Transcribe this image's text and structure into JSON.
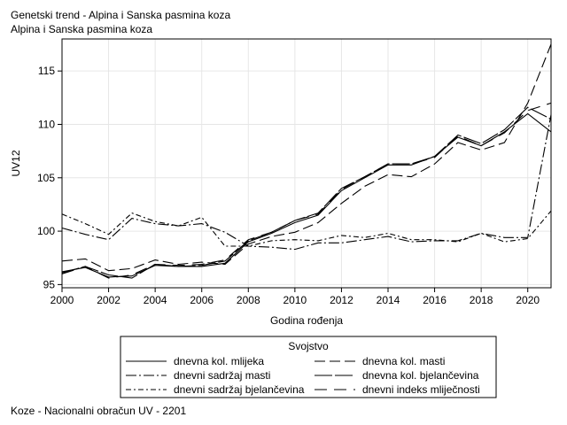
{
  "titles": {
    "line1": "Genetski trend - Alpina i Sanska pasmina koza",
    "line2": "Alpina i Sanska pasmina koza"
  },
  "footnote": "Koze - Nacionalni obračun UV - 2201",
  "chart_data": {
    "type": "line",
    "xlabel": "Godina rođenja",
    "ylabel": "UV12",
    "xlim": [
      2000,
      2021
    ],
    "ylim": [
      94.7,
      118
    ],
    "x_ticks": [
      "2000",
      "2002",
      "2004",
      "2006",
      "2008",
      "2010",
      "2012",
      "2014",
      "2016",
      "2018",
      "2020"
    ],
    "y_ticks": [
      "95",
      "100",
      "105",
      "110",
      "115"
    ],
    "grid": true,
    "legend": {
      "title": "Svojstvo",
      "placement": "bottom"
    },
    "x": [
      2000,
      2001,
      2002,
      2003,
      2004,
      2005,
      2006,
      2007,
      2008,
      2009,
      2010,
      2011,
      2012,
      2013,
      2014,
      2015,
      2016,
      2017,
      2018,
      2019,
      2020,
      2021
    ],
    "series": [
      {
        "name": "dnevna kol. mlijeka",
        "dash": "",
        "values": [
          96.2,
          96.6,
          95.7,
          95.8,
          96.8,
          96.7,
          96.7,
          97.0,
          99.0,
          99.8,
          100.8,
          101.5,
          103.8,
          105.0,
          106.2,
          106.2,
          107.0,
          108.8,
          108.0,
          109.3,
          111.0,
          109.3
        ]
      },
      {
        "name": "dnevna kol. masti",
        "dash": "12,5",
        "values": [
          97.2,
          97.4,
          96.3,
          96.5,
          97.3,
          96.9,
          97.1,
          96.9,
          98.8,
          99.5,
          99.9,
          100.8,
          102.6,
          104.2,
          105.3,
          105.1,
          106.3,
          108.3,
          107.6,
          108.3,
          112.0,
          117.5
        ]
      },
      {
        "name": "dnevni sadržaj masti",
        "dash": "12,3,2,3",
        "values": [
          100.3,
          99.7,
          99.2,
          101.2,
          100.7,
          100.5,
          100.7,
          99.9,
          98.6,
          98.5,
          98.3,
          98.9,
          98.9,
          99.2,
          99.5,
          99.0,
          99.1,
          99.1,
          99.8,
          99.4,
          99.4,
          110.9
        ]
      },
      {
        "name": "dnevna kol. bjelančevina",
        "dash": "20,3",
        "values": [
          96.1,
          96.7,
          95.9,
          95.6,
          96.9,
          96.7,
          96.8,
          97.2,
          99.1,
          99.9,
          101.0,
          101.7,
          104.0,
          105.1,
          106.3,
          106.3,
          107.0,
          109.0,
          108.2,
          109.5,
          111.6,
          110.5
        ]
      },
      {
        "name": "dnevni sadržaj bjelančevina",
        "dash": "6,3,2,3",
        "values": [
          101.6,
          100.7,
          99.7,
          101.7,
          100.9,
          100.5,
          101.3,
          98.6,
          98.6,
          99.1,
          99.2,
          99.1,
          99.6,
          99.4,
          99.8,
          99.2,
          99.2,
          99.0,
          99.8,
          99.0,
          99.3,
          101.9
        ]
      },
      {
        "name": "dnevni indeks mliječnosti",
        "dash": "14,8",
        "values": [
          96.0,
          96.7,
          95.6,
          95.9,
          96.9,
          96.8,
          96.9,
          97.3,
          99.2,
          99.9,
          101.0,
          101.6,
          103.9,
          105.1,
          106.3,
          106.3,
          106.9,
          108.9,
          108.0,
          109.2,
          111.3,
          112.0
        ]
      }
    ]
  }
}
